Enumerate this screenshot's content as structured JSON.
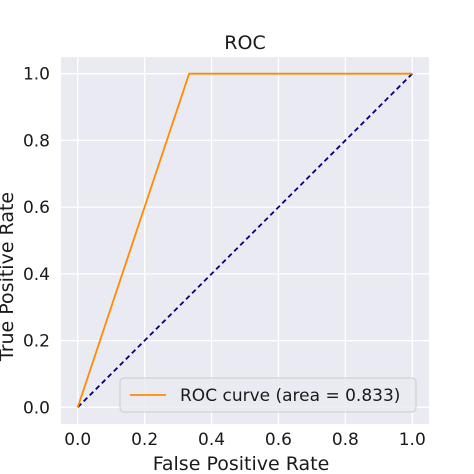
{
  "chart_data": {
    "type": "line",
    "title": "ROC",
    "xlabel": "False Positive Rate",
    "ylabel": "True Positive Rate",
    "xlim": [
      -0.05,
      1.05
    ],
    "ylim": [
      -0.05,
      1.05
    ],
    "xticks": [
      0.0,
      0.2,
      0.4,
      0.6,
      0.8,
      1.0
    ],
    "yticks": [
      0.0,
      0.2,
      0.4,
      0.6,
      0.8,
      1.0
    ],
    "xtick_labels": [
      "0.0",
      "0.2",
      "0.4",
      "0.6",
      "0.8",
      "1.0"
    ],
    "ytick_labels": [
      "0.0",
      "0.2",
      "0.4",
      "0.6",
      "0.8",
      "1.0"
    ],
    "grid": true,
    "legend_position": "lower-right",
    "series": [
      {
        "name": "ROC curve (area = 0.833)",
        "x": [
          0.0,
          0.333,
          1.0
        ],
        "y": [
          0.0,
          1.0,
          1.0
        ],
        "color": "#ff8c00",
        "style": "solid"
      },
      {
        "x": [
          0.0,
          1.0
        ],
        "y": [
          0.0,
          1.0
        ],
        "color": "#000080",
        "style": "dashed"
      }
    ],
    "background_color": "#eaeaf2",
    "grid_color": "#ffffff"
  }
}
